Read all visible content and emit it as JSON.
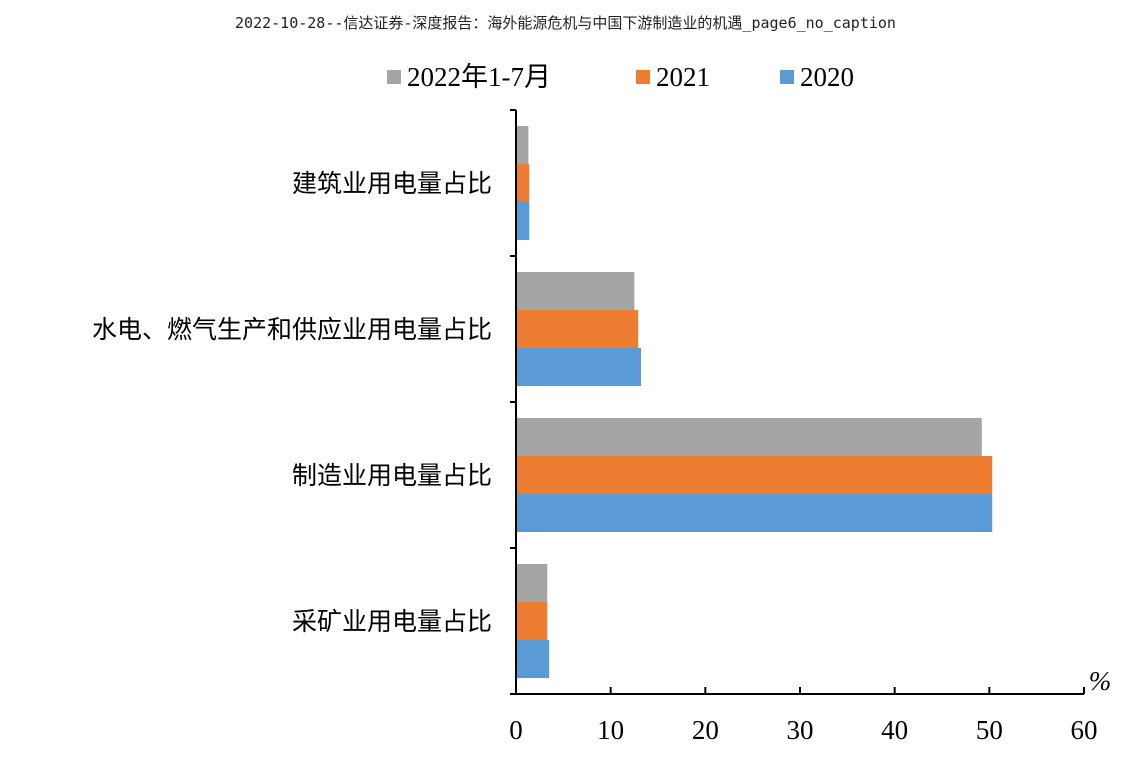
{
  "page": {
    "title": "2022-10-28--信达证券-深度报告：海外能源危机与中国下游制造业的机遇_page6_no_caption"
  },
  "chart_data": {
    "type": "bar",
    "orientation": "horizontal",
    "categories": [
      "建筑业用电量占比",
      "水电、燃气生产和供应业用电量占比",
      "制造业用电量占比",
      "采矿业用电量占比"
    ],
    "series": [
      {
        "name": "2022年1-7月",
        "color": "#a5a5a5",
        "values": [
          1.2,
          12.4,
          49.1,
          3.2
        ]
      },
      {
        "name": "2021",
        "color": "#ed7d31",
        "values": [
          1.3,
          12.8,
          50.2,
          3.2
        ]
      },
      {
        "name": "2020",
        "color": "#5b9bd5",
        "values": [
          1.3,
          13.1,
          50.2,
          3.4
        ]
      }
    ],
    "xlim": [
      0,
      60
    ],
    "xticks": [
      0,
      10,
      20,
      30,
      40,
      50,
      60
    ],
    "unit": "%",
    "legend_position": "top",
    "grid": false
  }
}
